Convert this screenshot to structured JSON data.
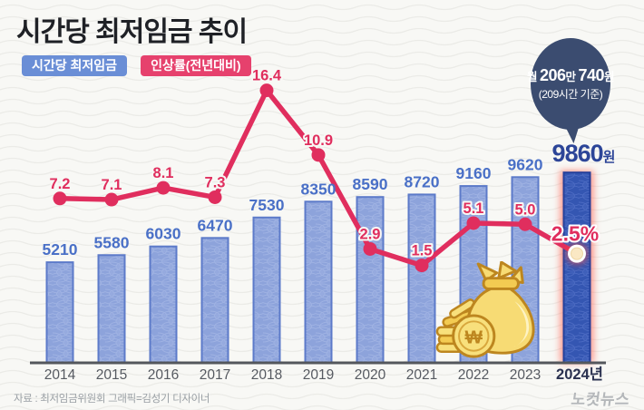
{
  "title": "시간당 최저임금 추이",
  "legend": {
    "wage_label": "시간당 최저임금",
    "rate_label": "인상률(전년대비)"
  },
  "bubble": {
    "prefix": "월 ",
    "num1": "206",
    "unit1": "만 ",
    "num2": "740",
    "unit2": "원",
    "line2": "(209시간 기준)"
  },
  "footer": {
    "source": "자료 : 최저임금위원회  그래픽=김성기 디자이너",
    "logo": "노컷뉴스"
  },
  "colors": {
    "bar_fill": "#8da3db",
    "bar_border": "#5c7ac9",
    "bar_fill_highlight": "#3456b2",
    "bar_border_highlight": "#24409b",
    "line": "#e02e5e",
    "glow": "#ff4636",
    "value_label": "#4a70c7",
    "value_label_highlight": "#2c4598",
    "badge_blue": "#6a8ed6",
    "badge_pink": "#e6416d",
    "bubble_bg": "#3b4c70"
  },
  "chart_data": {
    "type": "bar",
    "title": "시간당 최저임금 추이",
    "categories": [
      "2014",
      "2015",
      "2016",
      "2017",
      "2018",
      "2019",
      "2020",
      "2021",
      "2022",
      "2023",
      "2024년"
    ],
    "series": [
      {
        "name": "시간당 최저임금",
        "type": "bar",
        "unit": "원",
        "values": [
          5210,
          5580,
          6030,
          6470,
          7530,
          8350,
          8590,
          8720,
          9160,
          9620,
          9860
        ],
        "labels": [
          "5210",
          "5580",
          "6030",
          "6470",
          "7530",
          "8350",
          "8590",
          "8720",
          "9160",
          "9620",
          "9860원"
        ]
      },
      {
        "name": "인상률(전년대비)",
        "type": "line",
        "unit": "%",
        "values": [
          7.2,
          7.1,
          8.1,
          7.3,
          16.4,
          10.9,
          2.9,
          1.5,
          5.1,
          5.0,
          2.5
        ],
        "labels": [
          "7.2",
          "7.1",
          "8.1",
          "7.3",
          "16.4",
          "10.9",
          "2.9",
          "1.5",
          "5.1",
          "5.0",
          "2.5%"
        ]
      }
    ],
    "highlight_last": true,
    "legend_position": "top-left",
    "grid": false,
    "baseline_axis": true
  }
}
